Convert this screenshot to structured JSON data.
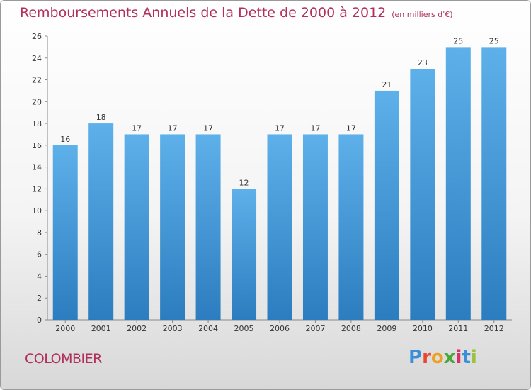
{
  "title": "Remboursements Annuels de la Dette de 2000 à 2012",
  "unit": "(en milliers d'€)",
  "footer": {
    "city": "COLOMBIER"
  },
  "brand": {
    "letters": [
      "P",
      "r",
      "o",
      "x",
      "i",
      "t",
      "i"
    ],
    "colors": [
      "#3a8fd8",
      "#e8492e",
      "#f0a020",
      "#4aa83a",
      "#d8306a",
      "#3a8fd8",
      "#9ac23a"
    ]
  },
  "colors": {
    "bar_light": "#5eb0ea",
    "bar_dark": "#2c7dbf",
    "title": "#b0305a"
  },
  "chart_data": {
    "type": "bar",
    "categories": [
      "2000",
      "2001",
      "2002",
      "2003",
      "2004",
      "2005",
      "2006",
      "2007",
      "2008",
      "2009",
      "2010",
      "2011",
      "2012"
    ],
    "values": [
      16,
      18,
      17,
      17,
      17,
      12,
      17,
      17,
      17,
      21,
      23,
      25,
      25
    ],
    "ylim": [
      0,
      26
    ],
    "yticks": [
      0,
      2,
      4,
      6,
      8,
      10,
      12,
      14,
      16,
      18,
      20,
      22,
      24,
      26
    ],
    "grid": false
  }
}
